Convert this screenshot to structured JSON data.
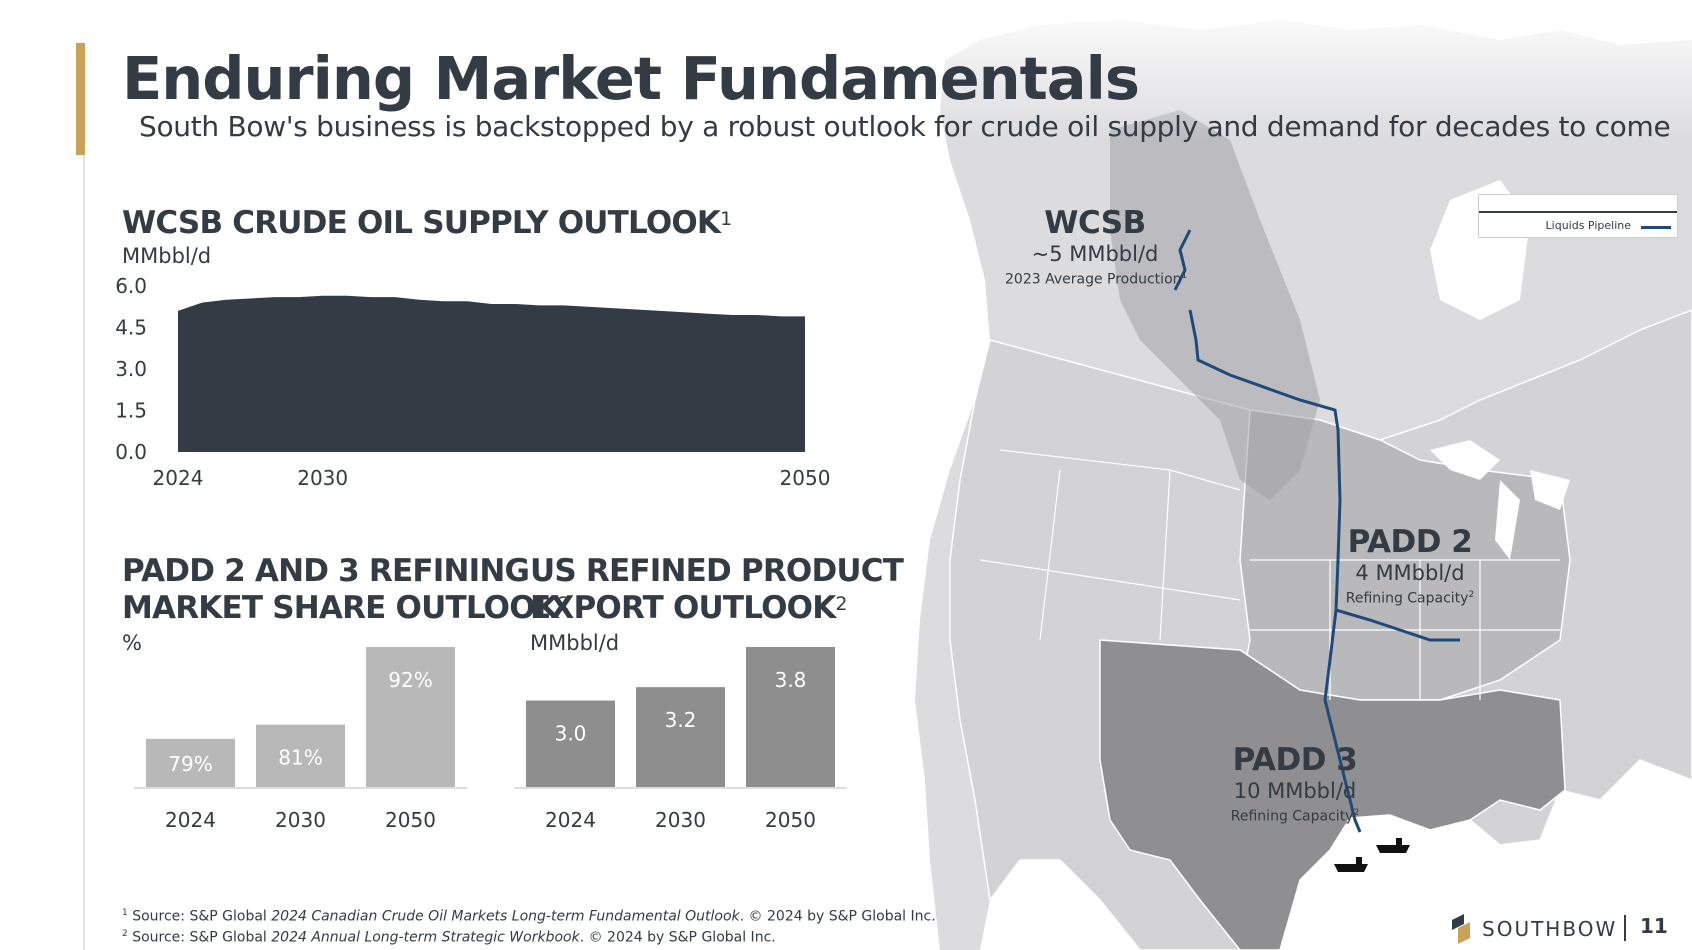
{
  "header": {
    "title": "Enduring Market Fundamentals",
    "subtitle": "South Bow's business is backstopped by a robust outlook for crude oil supply and demand for decades to come"
  },
  "wcsb_chart": {
    "heading": "WCSB CRUDE OIL SUPPLY OUTLOOK",
    "footnote_ref": "1",
    "unit": "MMbbl/d"
  },
  "padd_chart": {
    "heading_line1": "PADD 2 AND 3 REFINING",
    "heading_line2": "MARKET SHARE OUTLOOK",
    "footnote_ref": "2",
    "unit": "%"
  },
  "export_chart": {
    "heading_line1": "US REFINED PRODUCT",
    "heading_line2": "EXPORT OUTLOOK",
    "footnote_ref": "2",
    "unit": "MMbbl/d"
  },
  "chart_data": [
    {
      "type": "area",
      "title": "WCSB CRUDE OIL SUPPLY OUTLOOK",
      "ylabel": "MMbbl/d",
      "x": [
        2024,
        2025,
        2026,
        2027,
        2028,
        2029,
        2030,
        2031,
        2032,
        2033,
        2034,
        2035,
        2036,
        2037,
        2038,
        2039,
        2040,
        2041,
        2042,
        2043,
        2044,
        2045,
        2046,
        2047,
        2048,
        2049,
        2050
      ],
      "values": [
        5.1,
        5.4,
        5.5,
        5.55,
        5.6,
        5.6,
        5.65,
        5.65,
        5.6,
        5.6,
        5.5,
        5.45,
        5.45,
        5.35,
        5.35,
        5.3,
        5.3,
        5.25,
        5.2,
        5.15,
        5.1,
        5.05,
        5.0,
        4.95,
        4.95,
        4.9,
        4.9
      ],
      "x_tick_labels": [
        "2024",
        "2030",
        "2050"
      ],
      "y_tick_labels": [
        "0.0",
        "1.5",
        "3.0",
        "4.5",
        "6.0"
      ],
      "ylim": [
        0,
        6
      ],
      "color": "#333b44"
    },
    {
      "type": "bar",
      "title": "PADD 2 AND 3 REFINING MARKET SHARE OUTLOOK",
      "ylabel": "%",
      "categories": [
        "2024",
        "2030",
        "2050"
      ],
      "values": [
        79,
        81,
        92
      ],
      "data_labels": [
        "79%",
        "81%",
        "92%"
      ],
      "ylim": [
        76,
        92
      ],
      "color": "#b8b8b8"
    },
    {
      "type": "bar",
      "title": "US REFINED PRODUCT EXPORT OUTLOOK",
      "ylabel": "MMbbl/d",
      "categories": [
        "2024",
        "2030",
        "2050"
      ],
      "values": [
        3.0,
        3.2,
        3.8
      ],
      "data_labels": [
        "3.0",
        "3.2",
        "3.8"
      ],
      "ylim": [
        2.5,
        3.8
      ],
      "color": "#8e8e8e"
    }
  ],
  "map": {
    "legend_label": "Liquids Pipeline",
    "pipeline_color": "#1e4a7a",
    "regions": {
      "wcsb": {
        "name": "WCSB",
        "value": "~5 MMbbl/d",
        "note": "2023 Average Production",
        "note_ref": "1"
      },
      "padd2": {
        "name": "PADD 2",
        "value": "4 MMbbl/d",
        "note": "Refining Capacity",
        "note_ref": "2"
      },
      "padd3": {
        "name": "PADD 3",
        "value": "10 MMbbl/d",
        "note": "Refining Capacity",
        "note_ref": "2"
      }
    }
  },
  "footnotes": {
    "fn1_num": "1",
    "fn1_prefix": "Source: S&P Global ",
    "fn1_italic": "2024 Canadian Crude Oil Markets Long-term Fundamental Outlook",
    "fn1_suffix": ". © 2024 by S&P Global Inc.",
    "fn2_num": "2",
    "fn2_prefix": "Source: S&P Global ",
    "fn2_italic": "2024 Annual Long-term Strategic Workbook",
    "fn2_suffix": ". © 2024 by S&P Global Inc."
  },
  "footer": {
    "logo_text": "SOUTHBOW",
    "page_number": "11"
  }
}
